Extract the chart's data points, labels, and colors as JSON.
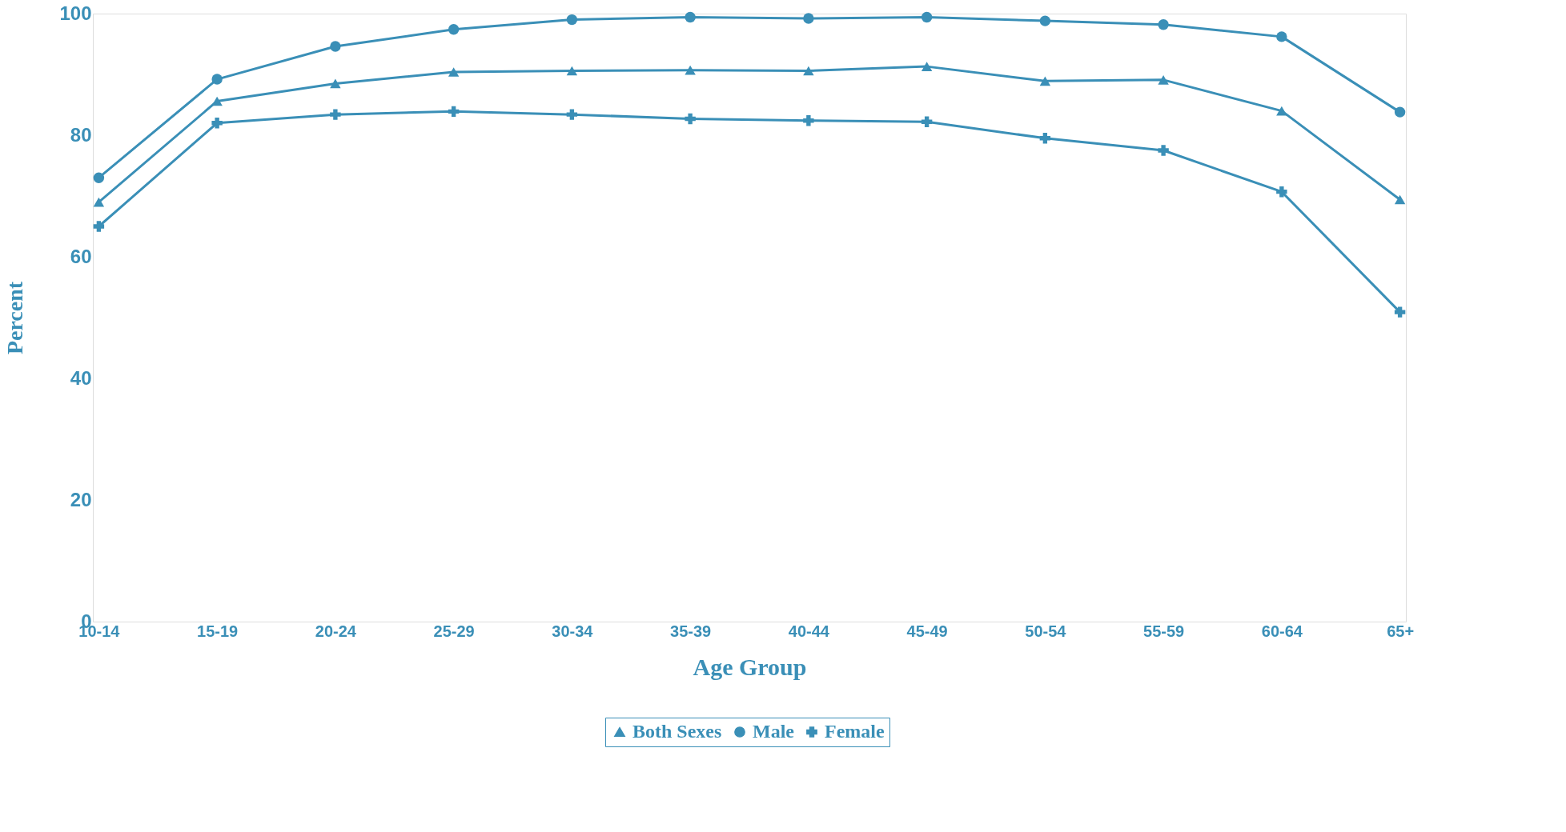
{
  "chart_data": {
    "type": "line",
    "xlabel": "Age Group",
    "ylabel": "Percent",
    "categories": [
      "10-14",
      "15-19",
      "20-24",
      "25-29",
      "30-34",
      "35-39",
      "40-44",
      "45-49",
      "50-54",
      "55-59",
      "60-64",
      "65+"
    ],
    "series": [
      {
        "name": "Both Sexes",
        "color": "#3a8fb7",
        "marker": "triangle",
        "values": [
          69,
          85.6,
          88.5,
          90.4,
          90.6,
          90.7,
          90.6,
          91.3,
          88.9,
          89.1,
          84,
          69.4
        ]
      },
      {
        "name": "Male",
        "color": "#3a8fb7",
        "marker": "circle",
        "values": [
          73,
          89.2,
          94.6,
          97.4,
          99,
          99.4,
          99.2,
          99.4,
          98.8,
          98.2,
          96.2,
          83.8
        ]
      },
      {
        "name": "Female",
        "color": "#3a8fb7",
        "marker": "cross",
        "values": [
          65,
          82,
          83.4,
          83.9,
          83.4,
          82.7,
          82.4,
          82.2,
          79.5,
          77.5,
          70.7,
          50.9
        ]
      }
    ],
    "ylim": [
      0,
      100
    ],
    "yticks": [
      0,
      20,
      40,
      60,
      80,
      100
    ],
    "grid": false,
    "legend": "bottom",
    "line_style": "solid"
  }
}
